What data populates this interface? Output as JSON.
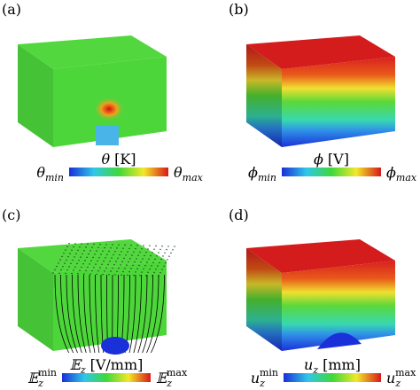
{
  "panels": [
    {
      "label": "(a)",
      "title": {
        "symbol": "θ",
        "unit": "[K]"
      },
      "min": {
        "symbol": "θ",
        "sub": "min"
      },
      "max": {
        "symbol": "θ",
        "sub": "max"
      }
    },
    {
      "label": "(b)",
      "title": {
        "symbol": "ϕ",
        "unit": "[V]"
      },
      "min": {
        "symbol": "ϕ",
        "sub": "min"
      },
      "max": {
        "symbol": "ϕ",
        "sub": "max"
      }
    },
    {
      "label": "(c)",
      "title": {
        "symbol": "𝔼",
        "sub": "z",
        "unit": "[V/mm]"
      },
      "min": {
        "symbol": "𝔼",
        "sub": "z",
        "sup": "min"
      },
      "max": {
        "symbol": "𝔼",
        "sub": "z",
        "sup": "max"
      }
    },
    {
      "label": "(d)",
      "title": {
        "symbol": "u",
        "sub": "z",
        "unit": "[mm]"
      },
      "min": {
        "symbol": "u",
        "sub": "z",
        "sup": "min"
      },
      "max": {
        "symbol": "u",
        "sub": "z",
        "sup": "max"
      }
    }
  ]
}
